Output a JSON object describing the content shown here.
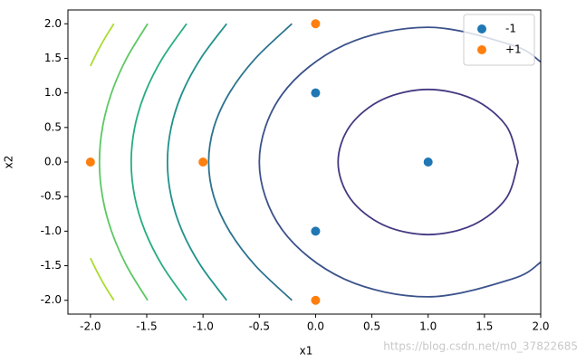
{
  "chart_data": {
    "type": "scatter",
    "x_label": "x1",
    "y_label": "x2",
    "xlim": [
      -2.2,
      2.0
    ],
    "ylim": [
      -2.2,
      2.2
    ],
    "xticks": [
      {
        "value": -2,
        "label": "-2.0"
      },
      -1.5,
      {
        "value": -1,
        "label": "-1.0"
      },
      -0.5,
      {
        "value": 0,
        "label": "0.0"
      },
      0.5,
      {
        "value": 1,
        "label": "1.0"
      },
      1.5,
      {
        "value": 2,
        "label": "2.0"
      }
    ],
    "yticks": [
      {
        "value": -2,
        "label": "-2.0"
      },
      -1.5,
      {
        "value": -1,
        "label": "-1.0"
      },
      -0.5,
      {
        "value": 0,
        "label": "0.0"
      },
      0.5,
      {
        "value": 1,
        "label": "1.0"
      },
      1.5,
      {
        "value": 2,
        "label": "2.0"
      }
    ],
    "legend": "upper right",
    "series": [
      {
        "name": "-1",
        "color": "#1f77b4",
        "x": [
          0,
          0,
          1
        ],
        "values": [
          1,
          -1,
          0
        ]
      },
      {
        "name": "+1",
        "color": "#ff7f0e",
        "x": [
          0,
          0,
          -2,
          -1
        ],
        "values": [
          2,
          -2,
          0,
          0
        ]
      }
    ],
    "contours": [
      {
        "color": "#453781",
        "x": [
          1.8,
          1.693,
          1.4,
          1,
          0.6,
          0.307,
          0.2,
          0.307,
          0.6,
          1,
          1.4,
          1.693,
          1.8
        ],
        "y": [
          0,
          0.525,
          0.909,
          1.05,
          0.909,
          0.525,
          0,
          -0.525,
          -0.909,
          -1.05,
          -0.909,
          -0.525,
          0
        ]
      },
      {
        "color": "#3b528b",
        "x": [
          2.0,
          1.75,
          1,
          0.25,
          -0.299,
          -0.5,
          -0.299,
          0.25,
          1,
          1.75,
          2.0
        ],
        "y": [
          1.449,
          1.689,
          1.95,
          1.689,
          0.975,
          0,
          -0.975,
          -1.689,
          -1.95,
          -1.689,
          -1.449
        ]
      },
      {
        "color": "#2c728e",
        "x": [
          -0.21,
          -0.534,
          -0.765,
          -0.904,
          -0.95,
          -0.904,
          -0.765,
          -0.534,
          -0.21
        ],
        "y": [
          2,
          1.5,
          1,
          0.5,
          0,
          -0.5,
          -1,
          -1.5,
          -2
        ]
      },
      {
        "color": "#21918c",
        "x": [
          -0.79,
          -1.02,
          -1.185,
          -1.283,
          -1.316,
          -1.283,
          -1.185,
          -1.02,
          -0.79
        ],
        "y": [
          2,
          1.5,
          1,
          0.5,
          0,
          -0.5,
          -1,
          -1.5,
          -2
        ]
      },
      {
        "color": "#27ad81",
        "x": [
          -1.146,
          -1.361,
          -1.515,
          -1.607,
          -1.638,
          -1.607,
          -1.515,
          -1.361,
          -1.146
        ],
        "y": [
          2,
          1.5,
          1,
          0.5,
          0,
          -0.5,
          -1,
          -1.5,
          -2
        ]
      },
      {
        "color": "#5cc863",
        "x": [
          -1.492,
          -1.679,
          -1.813,
          -1.893,
          -1.92,
          -1.893,
          -1.813,
          -1.679,
          -1.492
        ],
        "y": [
          2,
          1.5,
          1,
          0.5,
          0,
          -0.5,
          -1,
          -1.5,
          -2
        ]
      },
      {
        "color": "#aadc32",
        "x": [
          -1.792,
          -1.869,
          -1.937,
          -2.0,
          null,
          -2.0,
          -1.937,
          -1.869,
          -1.792
        ],
        "y": [
          2,
          1.8,
          1.6,
          1.39,
          null,
          -1.39,
          -1.6,
          -1.8,
          -2
        ]
      }
    ],
    "watermark": "https://blog.csdn.net/m0_37822685"
  }
}
